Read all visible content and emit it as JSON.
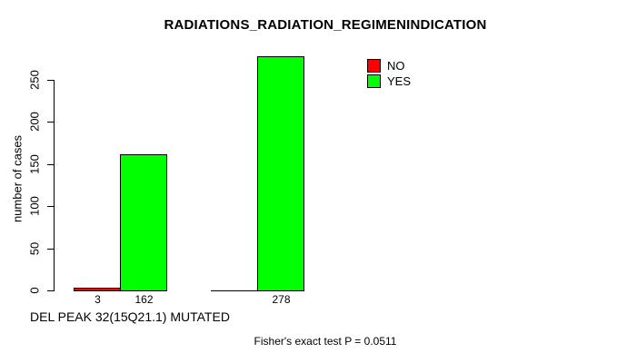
{
  "figure": {
    "background": "#ffffff",
    "axis_color": "#000000"
  },
  "chart_data": {
    "type": "bar",
    "title": "RADIATIONS_RADIATION_REGIMENINDICATION",
    "ylabel": "number of cases",
    "xlabel": "DEL PEAK 32(15Q21.1) MUTATED",
    "annotation": "Fisher's exact test P = 0.0511",
    "yticks": [
      0,
      50,
      100,
      150,
      200,
      250
    ],
    "ylim": [
      0,
      280
    ],
    "grid": false,
    "legend_position": "inside-top-right",
    "series_colors": {
      "NO": "#ff0000",
      "YES": "#00ff00"
    },
    "legend": [
      {
        "label": "NO",
        "color": "#ff0000"
      },
      {
        "label": "YES",
        "color": "#00ff00"
      }
    ],
    "groups": [
      {
        "bars": [
          {
            "series": "NO",
            "value": 3,
            "label": "3"
          },
          {
            "series": "YES",
            "value": 162,
            "label": "162"
          }
        ]
      },
      {
        "bars": [
          {
            "series": "NO",
            "value": 0,
            "label": ""
          },
          {
            "series": "YES",
            "value": 278,
            "label": "278"
          }
        ]
      }
    ]
  }
}
